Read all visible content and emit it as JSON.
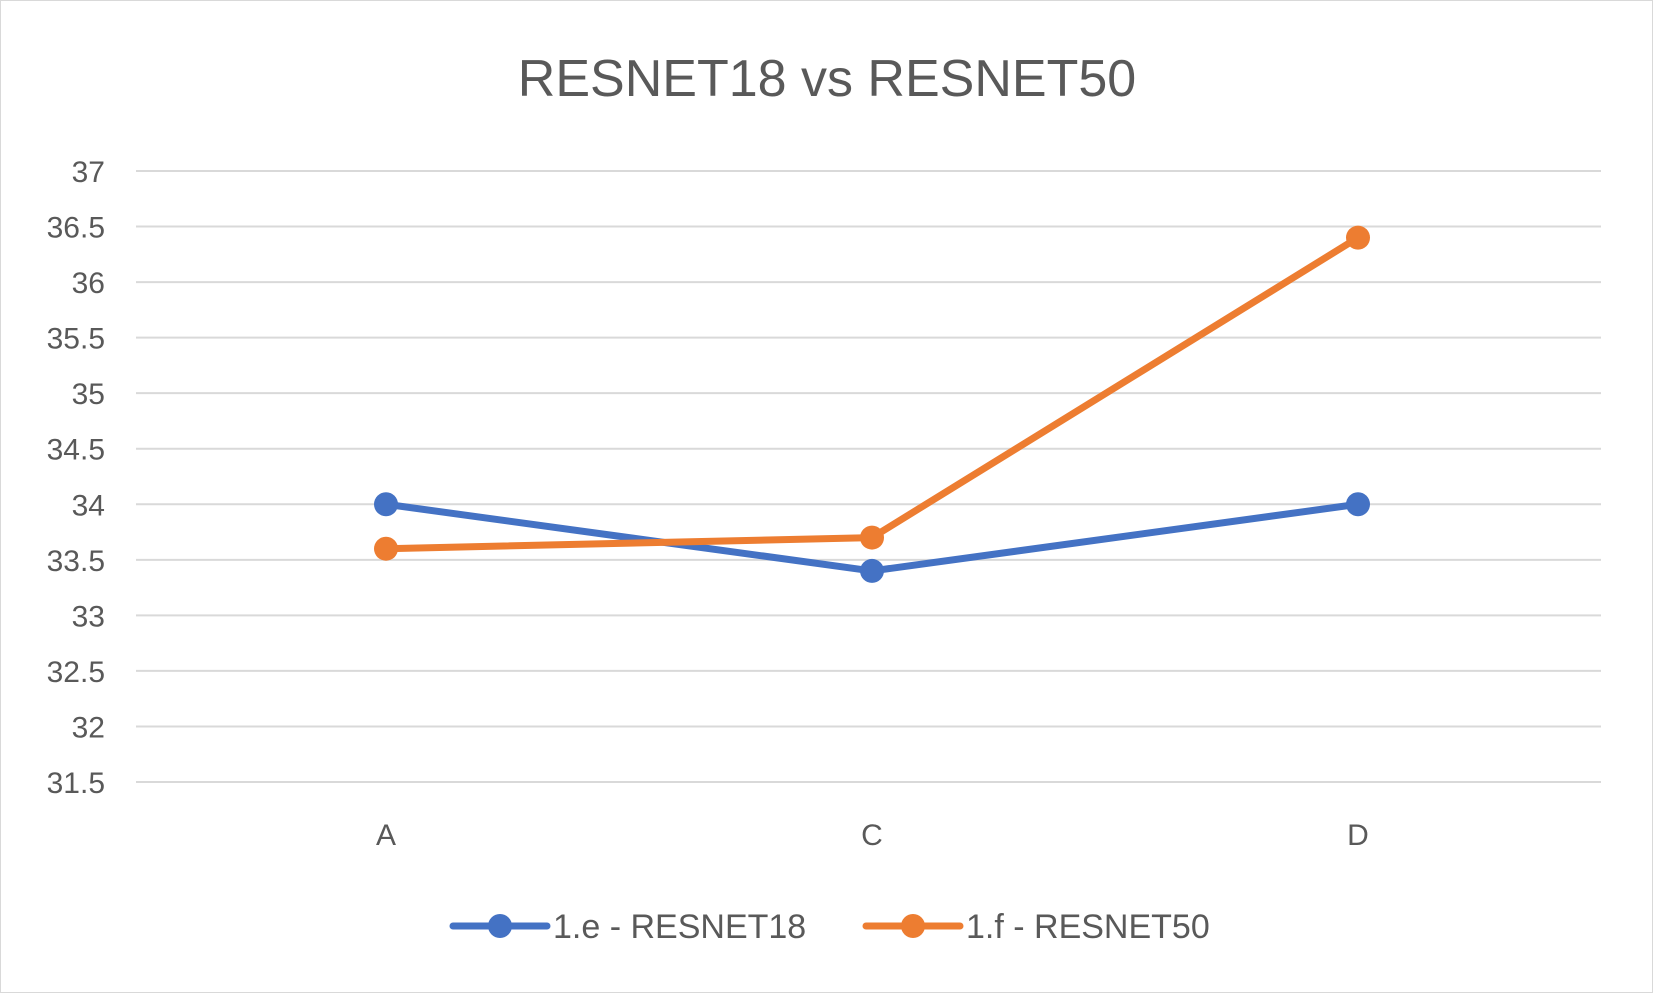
{
  "chart_data": {
    "type": "line",
    "title": "RESNET18 vs RESNET50",
    "categories": [
      "A",
      "C",
      "D"
    ],
    "y_ticks": [
      "37",
      "36.5",
      "36",
      "35.5",
      "35",
      "34.5",
      "34",
      "33.5",
      "33",
      "32.5",
      "32",
      "31.5"
    ],
    "ylim": [
      31.5,
      37
    ],
    "grid": true,
    "legend_position": "bottom",
    "series": [
      {
        "name": "1.e - RESNET18",
        "values": [
          34.0,
          33.4,
          34.0
        ],
        "color": "#4472C4"
      },
      {
        "name": "1.f - RESNET50",
        "values": [
          33.6,
          33.7,
          36.4
        ],
        "color": "#ED7D31"
      }
    ]
  }
}
